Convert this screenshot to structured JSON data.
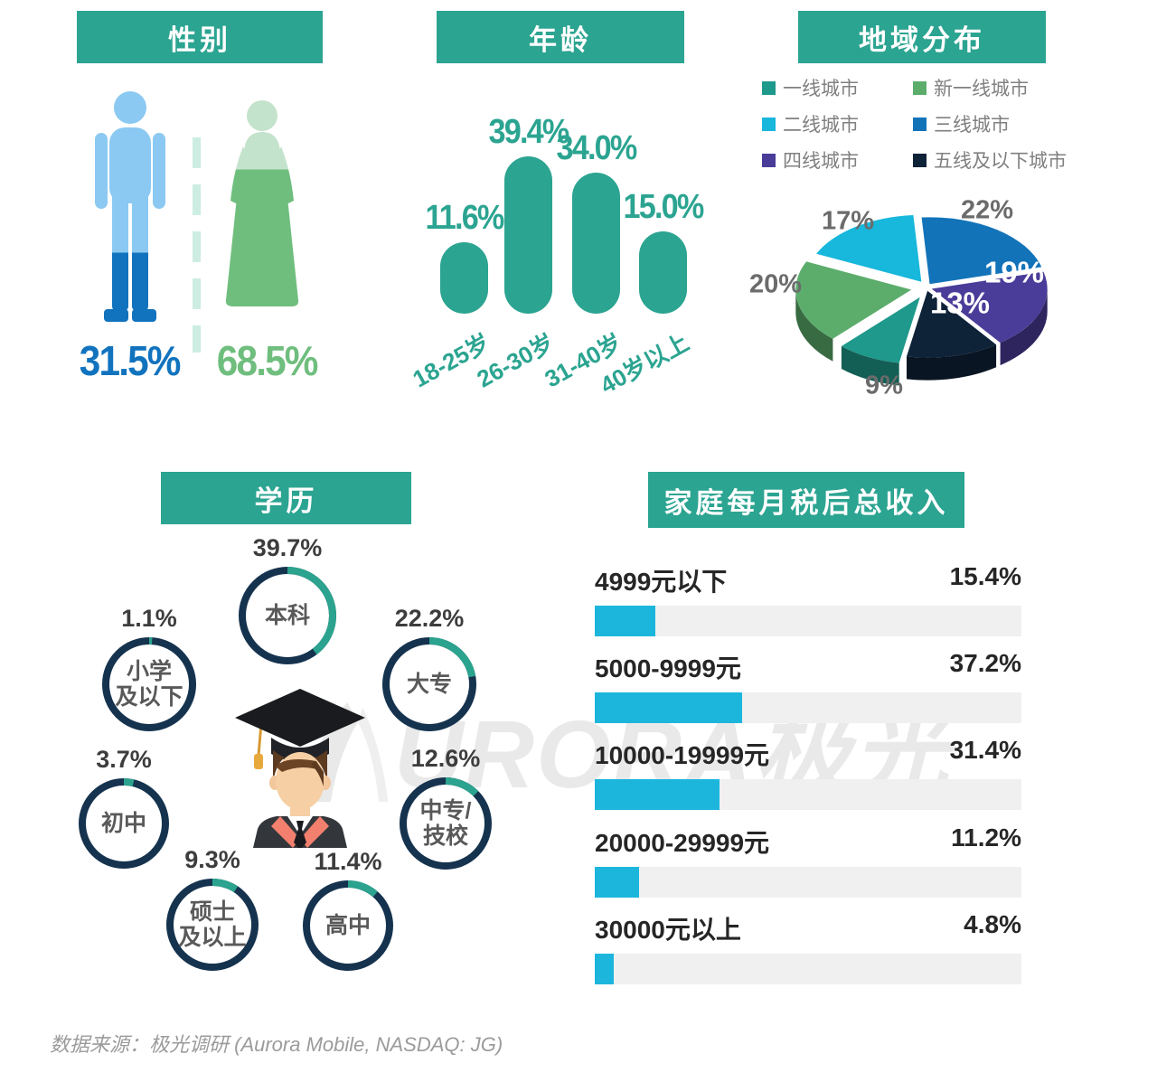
{
  "accent_teal": "#2BA491",
  "watermark": {
    "text": "URORA极光"
  },
  "footer": {
    "source": "数据来源：极光调研 (Aurora Mobile, NASDAQ: JG)"
  },
  "chart_data": [
    {
      "id": "gender",
      "type": "pictogram",
      "title": "性别",
      "series": [
        {
          "name": "male",
          "value": 31.5,
          "display": "31.5%",
          "color": "#1173BE",
          "light_color": "#8BC9F2"
        },
        {
          "name": "female",
          "value": 68.5,
          "display": "68.5%",
          "color": "#6FBE7E",
          "light_color": "#C4E3CC"
        }
      ]
    },
    {
      "id": "age",
      "type": "bar",
      "title": "年龄",
      "categories": [
        "18-25岁",
        "26-30岁",
        "31-40岁",
        "40岁以上"
      ],
      "values": [
        11.6,
        39.4,
        34.0,
        15.0
      ],
      "labels": [
        "11.6%",
        "39.4%",
        "34.0%",
        "15.0%"
      ],
      "bar_color": "#2BA491"
    },
    {
      "id": "region",
      "type": "pie",
      "title": "地域分布",
      "slices": [
        {
          "label": "一线城市",
          "value": 9,
          "display": "9%",
          "color": "#1E998B"
        },
        {
          "label": "新一线城市",
          "value": 20,
          "display": "20%",
          "color": "#5CAD6C"
        },
        {
          "label": "二线城市",
          "value": 17,
          "display": "17%",
          "color": "#18B7DC"
        },
        {
          "label": "三线城市",
          "value": 22,
          "display": "22%",
          "color": "#1273B9"
        },
        {
          "label": "四线城市",
          "value": 19,
          "display": "19%",
          "color": "#4A3C99"
        },
        {
          "label": "五线及以下城市",
          "value": 13,
          "display": "13%",
          "color": "#0E2238"
        }
      ]
    },
    {
      "id": "education",
      "type": "donut-rings",
      "title": "学历",
      "ring_color": "#15334E",
      "arc_color": "#2BA38E",
      "rings": [
        {
          "lines": [
            "本科"
          ],
          "value": 39.7,
          "display": "39.7%"
        },
        {
          "lines": [
            "小学",
            "及以下"
          ],
          "value": 1.1,
          "display": "1.1%"
        },
        {
          "lines": [
            "大专"
          ],
          "value": 22.2,
          "display": "22.2%"
        },
        {
          "lines": [
            "初中"
          ],
          "value": 3.7,
          "display": "3.7%"
        },
        {
          "lines": [
            "中专/",
            "技校"
          ],
          "value": 12.6,
          "display": "12.6%"
        },
        {
          "lines": [
            "硕士",
            "及以上"
          ],
          "value": 9.3,
          "display": "9.3%"
        },
        {
          "lines": [
            "高中"
          ],
          "value": 11.4,
          "display": "11.4%"
        }
      ]
    },
    {
      "id": "income",
      "type": "bar",
      "title": "家庭每月税后总收入",
      "categories": [
        "4999元以下",
        "5000-9999元",
        "10000-19999元",
        "20000-29999元",
        "30000元以上"
      ],
      "values": [
        15.4,
        37.2,
        31.4,
        11.2,
        4.8
      ],
      "labels": [
        "15.4%",
        "37.2%",
        "31.4%",
        "11.2%",
        "4.8%"
      ],
      "bar_color": "#1CB6DD",
      "track_color": "#F0F0F0"
    }
  ]
}
